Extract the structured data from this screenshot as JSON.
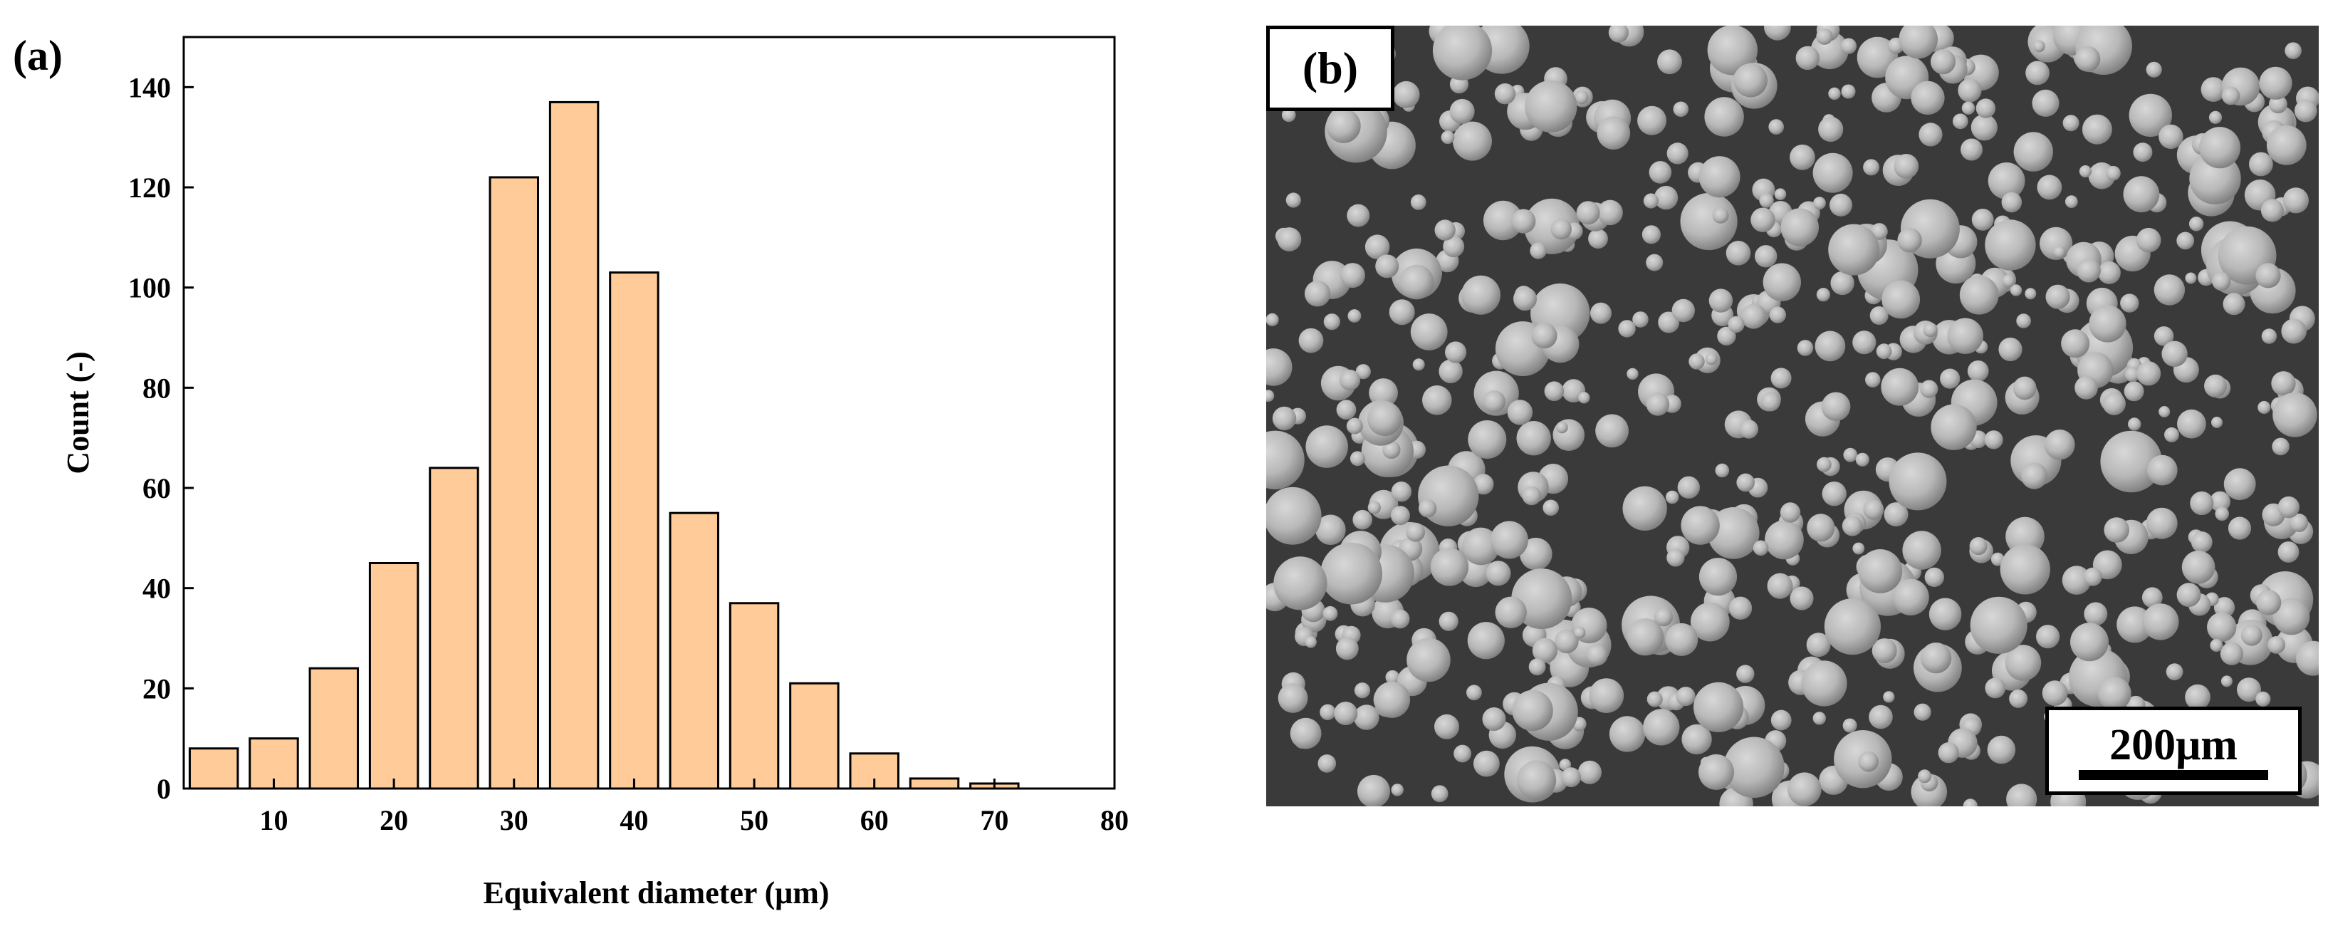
{
  "panel_a": {
    "label": "(a)",
    "chart_data": {
      "type": "bar",
      "x": [
        5,
        10,
        15,
        20,
        25,
        30,
        35,
        40,
        45,
        50,
        55,
        60,
        65,
        70,
        75
      ],
      "values": [
        8,
        10,
        24,
        45,
        64,
        122,
        137,
        103,
        55,
        37,
        21,
        7,
        2,
        1,
        0
      ],
      "xlabel": "Equivalent diameter (μm)",
      "ylabel": "Count (-)",
      "xlim": [
        2.5,
        80
      ],
      "ylim": [
        0,
        150
      ],
      "xticks": [
        10,
        20,
        30,
        40,
        50,
        60,
        70,
        80
      ],
      "yticks": [
        0,
        20,
        40,
        60,
        80,
        100,
        120,
        140
      ],
      "bar_color": "#FFCC99",
      "grid": false,
      "legend": "none"
    }
  },
  "panel_b": {
    "label": "(b)",
    "scale_bar": "200μm",
    "background_color": "#3a3a3a",
    "particle_color": "#b8b8b8"
  }
}
